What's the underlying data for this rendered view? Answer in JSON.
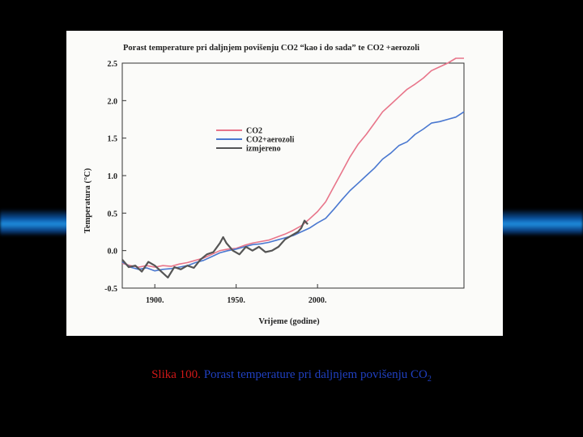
{
  "caption": {
    "label": "Slika 100.",
    "text": "Porast temperature pri daljnjem povišenju CO",
    "subscript": "2"
  },
  "chart_data": {
    "type": "line",
    "title": "Porast temperature pri daljnjem povišenju CO2 “kao i do sada” te CO2 +aerozoli",
    "xlabel": "Vrijeme (godine)",
    "ylabel": "Temperatura (°C)",
    "xlim": [
      1880,
      2090
    ],
    "ylim": [
      -0.5,
      2.5
    ],
    "xticks": [
      1900,
      1950,
      2000
    ],
    "xtick_labels": [
      "1900.",
      "1950.",
      "2000."
    ],
    "yticks": [
      -0.5,
      0.0,
      0.5,
      1.0,
      1.5,
      2.0,
      2.5
    ],
    "ytick_labels": [
      "-0.5",
      "0.0",
      "0.5",
      "1.0",
      "1.5",
      "2.0",
      "2.5"
    ],
    "grid": false,
    "legend_position": "upper-left",
    "series": [
      {
        "name": "CO2",
        "color": "#e8758a",
        "x": [
          1880,
          1885,
          1890,
          1895,
          1900,
          1905,
          1910,
          1915,
          1920,
          1925,
          1930,
          1935,
          1940,
          1945,
          1950,
          1955,
          1960,
          1965,
          1970,
          1975,
          1980,
          1985,
          1990,
          1995,
          2000,
          2005,
          2010,
          2015,
          2020,
          2025,
          2030,
          2035,
          2040,
          2045,
          2050,
          2055,
          2060,
          2065,
          2070,
          2075,
          2080,
          2085,
          2090
        ],
        "y": [
          -0.17,
          -0.2,
          -0.22,
          -0.2,
          -0.22,
          -0.2,
          -0.21,
          -0.18,
          -0.16,
          -0.13,
          -0.1,
          -0.05,
          0.0,
          0.02,
          0.03,
          0.07,
          0.1,
          0.12,
          0.14,
          0.18,
          0.22,
          0.27,
          0.33,
          0.42,
          0.52,
          0.65,
          0.85,
          1.05,
          1.25,
          1.42,
          1.55,
          1.7,
          1.85,
          1.95,
          2.05,
          2.15,
          2.22,
          2.3,
          2.4,
          2.45,
          2.5,
          2.58,
          2.65
        ]
      },
      {
        "name": "CO2+aerozoli",
        "color": "#4a78d0",
        "x": [
          1880,
          1885,
          1890,
          1895,
          1900,
          1905,
          1910,
          1915,
          1920,
          1925,
          1930,
          1935,
          1940,
          1945,
          1950,
          1955,
          1960,
          1965,
          1970,
          1975,
          1980,
          1985,
          1990,
          1995,
          2000,
          2005,
          2010,
          2015,
          2020,
          2025,
          2030,
          2035,
          2040,
          2045,
          2050,
          2055,
          2060,
          2065,
          2070,
          2075,
          2080,
          2085,
          2090
        ],
        "y": [
          -0.15,
          -0.22,
          -0.25,
          -0.23,
          -0.27,
          -0.25,
          -0.24,
          -0.22,
          -0.2,
          -0.16,
          -0.13,
          -0.08,
          -0.03,
          0.0,
          0.02,
          0.05,
          0.08,
          0.09,
          0.11,
          0.14,
          0.17,
          0.2,
          0.25,
          0.3,
          0.37,
          0.43,
          0.55,
          0.68,
          0.8,
          0.9,
          1.0,
          1.1,
          1.22,
          1.3,
          1.4,
          1.45,
          1.55,
          1.62,
          1.7,
          1.72,
          1.75,
          1.78,
          1.85
        ]
      },
      {
        "name": "izmjereno",
        "color": "#555555",
        "x": [
          1880,
          1884,
          1888,
          1892,
          1896,
          1900,
          1904,
          1908,
          1912,
          1916,
          1920,
          1924,
          1928,
          1932,
          1936,
          1940,
          1942,
          1944,
          1948,
          1952,
          1956,
          1960,
          1964,
          1968,
          1972,
          1976,
          1980,
          1984,
          1988,
          1990,
          1992,
          1994
        ],
        "y": [
          -0.12,
          -0.22,
          -0.2,
          -0.28,
          -0.15,
          -0.2,
          -0.28,
          -0.36,
          -0.22,
          -0.25,
          -0.2,
          -0.23,
          -0.12,
          -0.05,
          -0.02,
          0.1,
          0.18,
          0.1,
          0.0,
          -0.05,
          0.05,
          0.0,
          0.05,
          -0.02,
          0.0,
          0.05,
          0.15,
          0.2,
          0.25,
          0.3,
          0.4,
          0.35
        ]
      }
    ]
  }
}
